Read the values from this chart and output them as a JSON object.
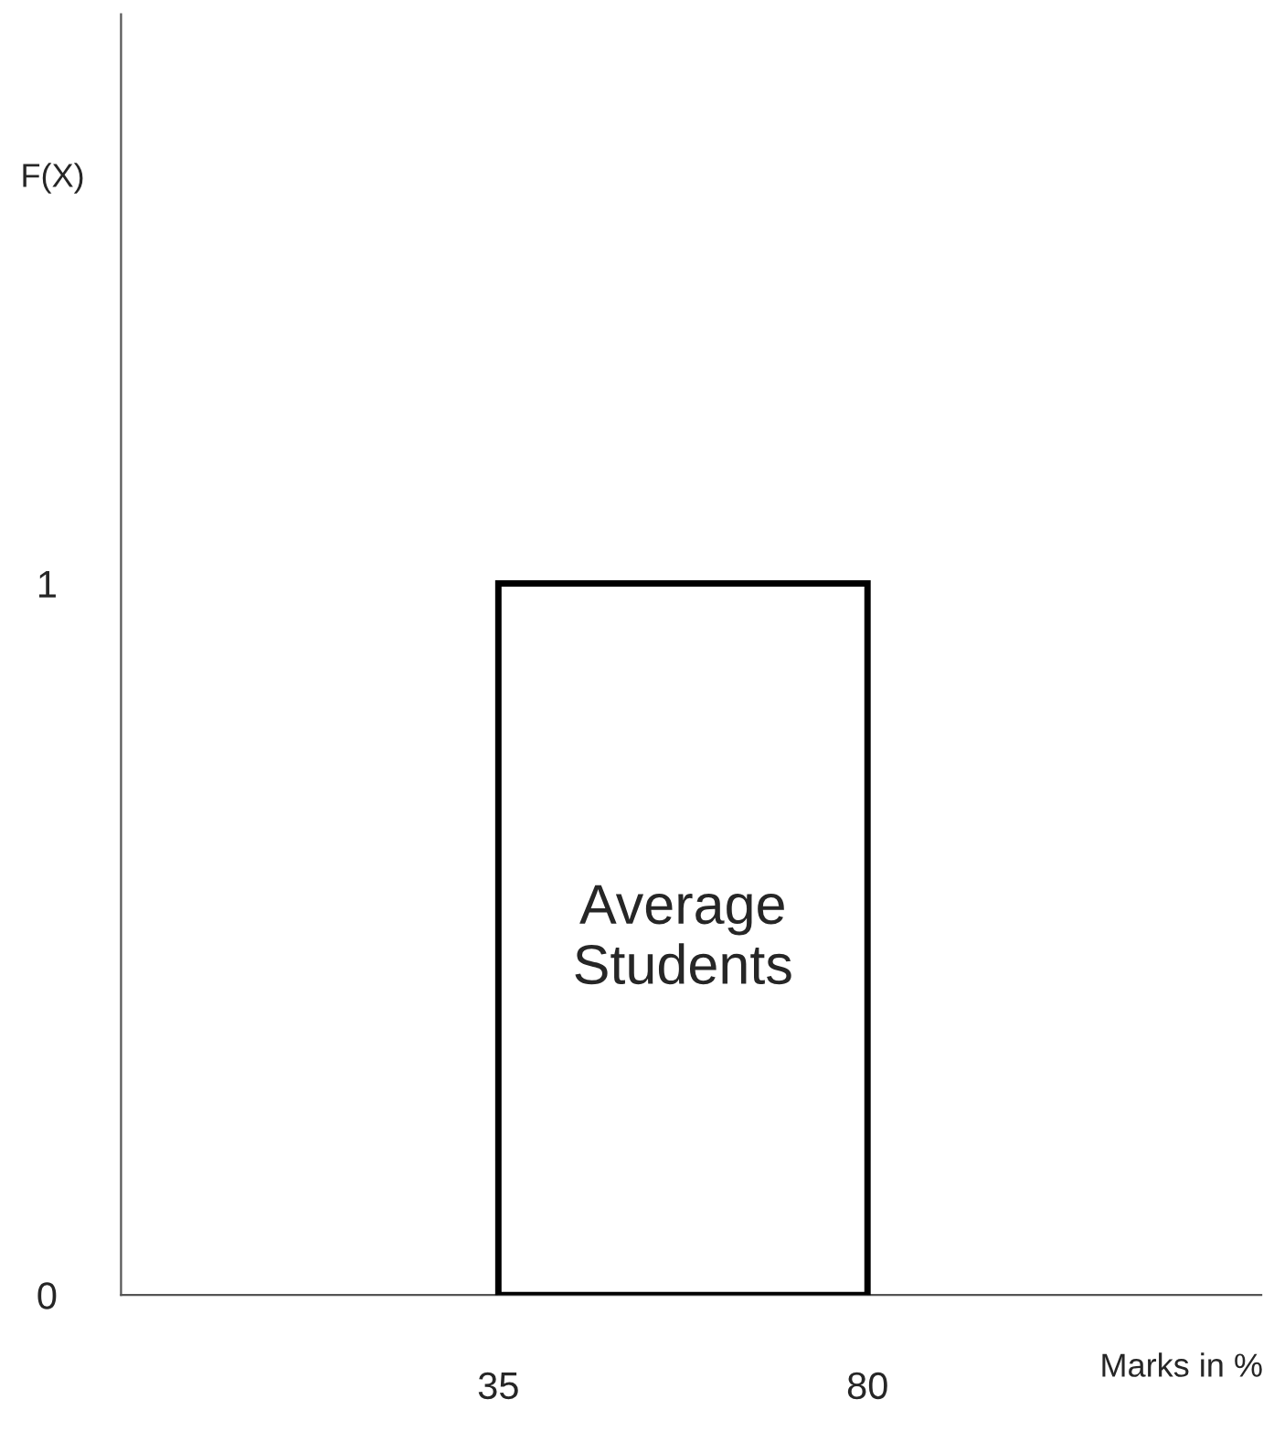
{
  "chart_data": {
    "type": "histogram",
    "bins": [
      35,
      80
    ],
    "values": [
      1
    ],
    "color": "#ffffff",
    "xlabel": "Marks in %",
    "ylabel": "F(X)",
    "xlim": [
      -11,
      128
    ],
    "ylim": [
      0,
      1.8
    ],
    "xticks": [
      35,
      80
    ],
    "yticks": [
      0,
      1
    ],
    "annotations": [
      "Average\nStudents"
    ],
    "grid": false
  }
}
